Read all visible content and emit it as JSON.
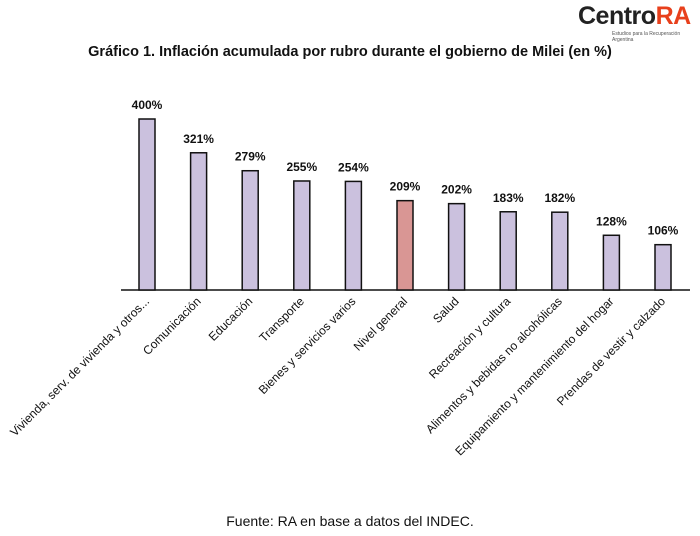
{
  "logo": {
    "text_a": "Centro",
    "text_b": "RA",
    "sub": "Estudios para la Recuperación Argentina"
  },
  "chart_data": {
    "type": "bar",
    "title": "Gráfico 1. Inflación acumulada por rubro durante el gobierno de Milei (en %)",
    "categories": [
      "Vivienda, serv. de vivienda y otros...",
      "Comunicación",
      "Educación",
      "Transporte",
      "Bienes y servicios varios",
      "Nivel general",
      "Salud",
      "Recreación y cultura",
      "Alimentos y bebidas no alcohólicas",
      "Equipamiento y mantenimiento del hogar",
      "Prendas de vestir y calzado"
    ],
    "values": [
      400,
      321,
      279,
      255,
      254,
      209,
      202,
      183,
      182,
      128,
      106
    ],
    "labels": [
      "400%",
      "321%",
      "279%",
      "255%",
      "254%",
      "209%",
      "202%",
      "183%",
      "182%",
      "128%",
      "106%"
    ],
    "highlight_index": 5,
    "colors": {
      "bar": "#cbc1de",
      "highlight": "#d99694",
      "stroke": "#111111"
    },
    "ylim": [
      0,
      400
    ],
    "xlabel": "",
    "ylabel": "",
    "grid": false
  },
  "source": "Fuente: RA en base a datos del INDEC."
}
